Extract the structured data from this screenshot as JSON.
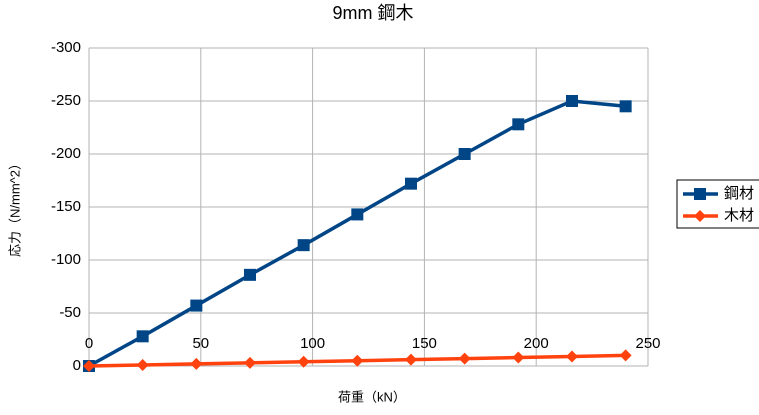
{
  "chart_data": {
    "type": "line",
    "title": "9mm 鋼木",
    "x_label": "荷重（kN）",
    "y_label": "応力（N/mm^2）",
    "x": [
      0,
      24,
      48,
      72,
      96,
      120,
      144,
      168,
      192,
      216,
      240
    ],
    "series": [
      {
        "name": "鋼材",
        "color": "#004586",
        "marker": "square",
        "values": [
          0,
          -28,
          -57,
          -86,
          -114,
          -143,
          -172,
          -200,
          -228,
          -250,
          -245
        ]
      },
      {
        "name": "木材",
        "color": "#ff420e",
        "marker": "diamond",
        "values": [
          0,
          -1,
          -2,
          -3,
          -4,
          -5,
          -6,
          -7,
          -8,
          -9,
          -10
        ]
      }
    ],
    "xlim": [
      0,
      250
    ],
    "xticks": [
      0,
      50,
      100,
      150,
      200,
      250
    ],
    "ylim": [
      0,
      -300
    ],
    "yticks": [
      0,
      -50,
      -100,
      -150,
      -200,
      -250,
      -300
    ],
    "grid": true,
    "legend": "right"
  }
}
